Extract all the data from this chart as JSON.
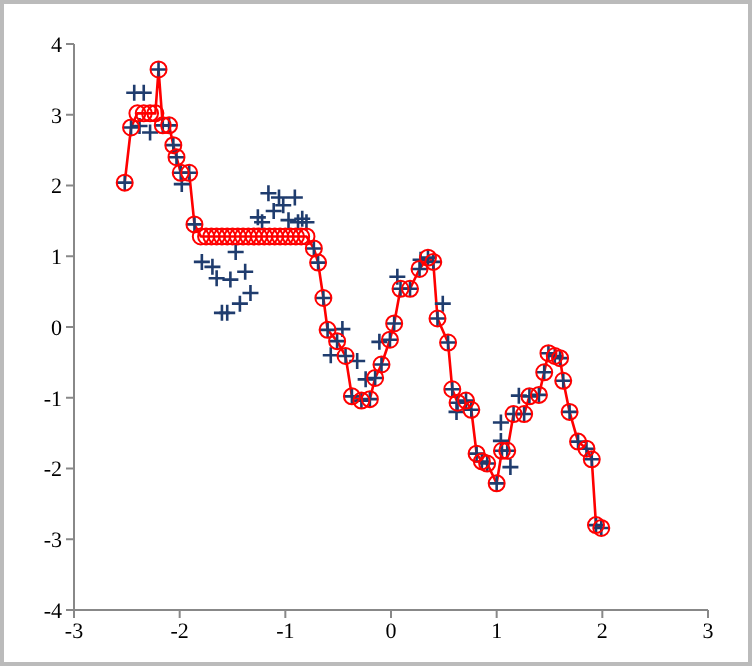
{
  "chart_data": {
    "type": "scatter",
    "xlim": [
      -3,
      3
    ],
    "xticks": [
      -3,
      -2,
      -1,
      0,
      1,
      2,
      3
    ],
    "ylim": [
      -4,
      4
    ],
    "yticks": [
      -4,
      -3,
      -2,
      -1,
      0,
      1,
      2,
      3,
      4
    ],
    "grid": false,
    "series": [
      {
        "marker": "cross",
        "color": "#1f3c6e",
        "x": [
          -2.52,
          -2.46,
          -2.43,
          -2.38,
          -2.34,
          -2.28,
          -2.2,
          -2.16,
          -2.1,
          -2.06,
          -2.03,
          -1.99,
          -1.98,
          -1.91,
          -1.86,
          -1.79,
          -1.69,
          -1.65,
          -1.6,
          -1.55,
          -1.52,
          -1.47,
          -1.43,
          -1.38,
          -1.33,
          -1.26,
          -1.22,
          -1.16,
          -1.11,
          -1.06,
          -1.02,
          -0.97,
          -0.91,
          -0.88,
          -0.84,
          -0.8,
          -0.73,
          -0.69,
          -0.64,
          -0.6,
          -0.57,
          -0.51,
          -0.46,
          -0.43,
          -0.37,
          -0.32,
          -0.28,
          -0.24,
          -0.2,
          -0.15,
          -0.11,
          -0.09,
          -0.01,
          0.03,
          0.06,
          0.09,
          0.18,
          0.27,
          0.28,
          0.35,
          0.4,
          0.44,
          0.49,
          0.54,
          0.58,
          0.62,
          0.63,
          0.71,
          0.76,
          0.81,
          0.86,
          0.91,
          1.0,
          1.04,
          1.04,
          1.05,
          1.1,
          1.13,
          1.16,
          1.21,
          1.26,
          1.31,
          1.4,
          1.45,
          1.49,
          1.55,
          1.6,
          1.63,
          1.69,
          1.77,
          1.85,
          1.9,
          1.94,
          1.99
        ],
        "values": [
          2.04,
          2.82,
          3.31,
          2.84,
          3.31,
          2.75,
          3.64,
          2.85,
          2.85,
          2.57,
          2.4,
          2.18,
          2.02,
          2.18,
          1.45,
          0.92,
          0.85,
          0.69,
          0.2,
          0.2,
          0.67,
          1.06,
          0.33,
          0.78,
          0.48,
          1.55,
          1.48,
          1.89,
          1.64,
          1.83,
          1.72,
          1.51,
          1.83,
          1.48,
          1.53,
          1.48,
          1.11,
          0.91,
          0.41,
          -0.04,
          -0.4,
          -0.2,
          -0.03,
          -0.41,
          -0.98,
          -0.48,
          -1.04,
          -0.74,
          -1.02,
          -0.72,
          -0.21,
          -0.53,
          -0.18,
          0.05,
          0.71,
          0.54,
          0.54,
          0.82,
          0.95,
          0.98,
          0.92,
          0.12,
          0.33,
          -0.22,
          -0.88,
          -1.2,
          -1.07,
          -1.04,
          -1.17,
          -1.79,
          -1.9,
          -1.93,
          -2.21,
          -1.35,
          -1.61,
          -1.75,
          -1.75,
          -1.98,
          -1.23,
          -0.97,
          -1.23,
          -0.98,
          -0.96,
          -0.64,
          -0.37,
          -0.41,
          -0.44,
          -0.76,
          -1.2,
          -1.62,
          -1.72,
          -1.87,
          -2.8,
          -2.84
        ]
      },
      {
        "type": "line",
        "marker": "circle",
        "color": "#ff0000",
        "x": [
          -2.52,
          -2.46,
          -2.4,
          -2.34,
          -2.28,
          -2.23,
          -2.2,
          -2.16,
          -2.1,
          -2.06,
          -2.03,
          -1.99,
          -1.91,
          -1.86,
          -1.8,
          -1.75,
          -1.7,
          -1.65,
          -1.6,
          -1.55,
          -1.5,
          -1.45,
          -1.4,
          -1.35,
          -1.3,
          -1.25,
          -1.2,
          -1.15,
          -1.1,
          -1.05,
          -1.0,
          -0.95,
          -0.9,
          -0.85,
          -0.8,
          -0.73,
          -0.69,
          -0.64,
          -0.6,
          -0.51,
          -0.43,
          -0.37,
          -0.28,
          -0.2,
          -0.15,
          -0.09,
          -0.01,
          0.03,
          0.09,
          0.18,
          0.27,
          0.35,
          0.4,
          0.44,
          0.54,
          0.58,
          0.63,
          0.71,
          0.76,
          0.81,
          0.86,
          0.91,
          1.0,
          1.05,
          1.1,
          1.16,
          1.26,
          1.31,
          1.4,
          1.45,
          1.49,
          1.55,
          1.6,
          1.63,
          1.69,
          1.77,
          1.85,
          1.9,
          1.94,
          1.99
        ],
        "values": [
          2.04,
          2.82,
          3.02,
          3.02,
          3.02,
          3.02,
          3.64,
          2.85,
          2.85,
          2.57,
          2.4,
          2.18,
          2.18,
          1.45,
          1.28,
          1.28,
          1.28,
          1.28,
          1.28,
          1.28,
          1.28,
          1.28,
          1.28,
          1.28,
          1.28,
          1.28,
          1.28,
          1.28,
          1.28,
          1.28,
          1.28,
          1.28,
          1.28,
          1.28,
          1.28,
          1.11,
          0.91,
          0.41,
          -0.04,
          -0.2,
          -0.41,
          -0.98,
          -1.04,
          -1.02,
          -0.72,
          -0.53,
          -0.18,
          0.05,
          0.54,
          0.54,
          0.82,
          0.98,
          0.92,
          0.12,
          -0.22,
          -0.88,
          -1.07,
          -1.04,
          -1.17,
          -1.79,
          -1.9,
          -1.93,
          -2.21,
          -1.75,
          -1.75,
          -1.23,
          -1.23,
          -0.98,
          -0.96,
          -0.64,
          -0.37,
          -0.41,
          -0.44,
          -0.76,
          -1.2,
          -1.62,
          -1.72,
          -1.87,
          -2.8,
          -2.84
        ]
      }
    ]
  }
}
